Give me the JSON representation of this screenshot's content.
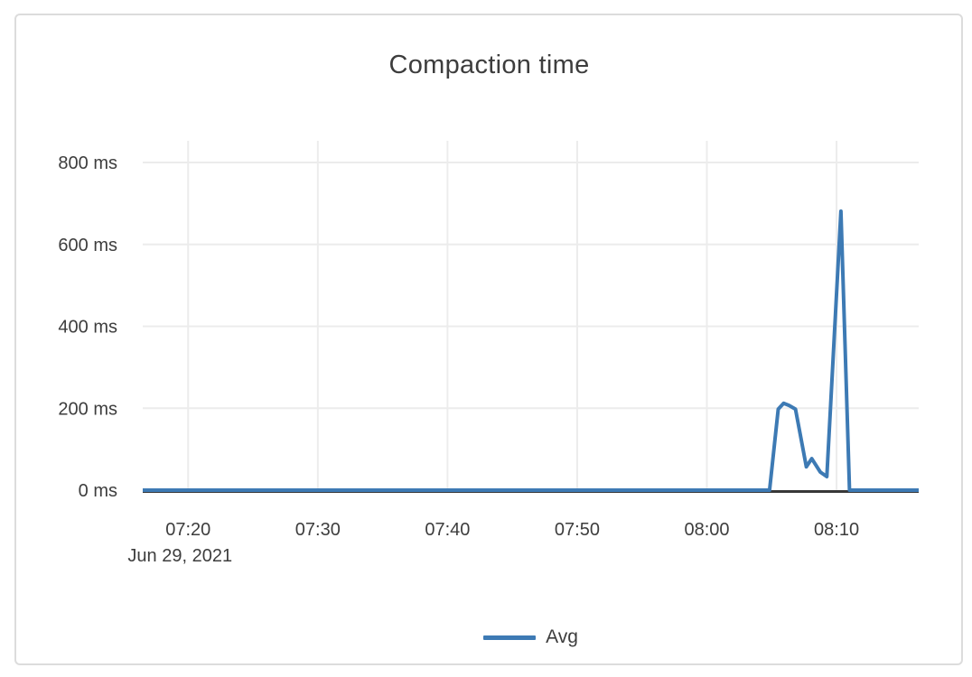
{
  "colors": {
    "series_blue": "#3d7ab4",
    "gridline": "#ececec",
    "zero_axis": "#383838",
    "text": "#3d3d3d",
    "card_border": "#dcdcdc",
    "background": "#ffffff"
  },
  "legend": {
    "items": [
      {
        "label": "Avg",
        "color": "#3d7ab4"
      }
    ]
  },
  "chart_data": {
    "type": "line",
    "title": "Compaction time",
    "x_axis": {
      "date_label": "Jun 29, 2021",
      "domain": [
        "07:16:30",
        "08:16:20"
      ],
      "ticks": [
        "07:20",
        "07:30",
        "07:40",
        "07:50",
        "08:00",
        "08:10"
      ]
    },
    "y_axis": {
      "unit": "ms",
      "min": 0,
      "max": 800,
      "ticks": [
        0,
        200,
        400,
        600,
        800
      ],
      "tick_labels": [
        "0 ms",
        "200 ms",
        "400 ms",
        "600 ms",
        "800 ms"
      ]
    },
    "grid": true,
    "legend_position": "bottom-center",
    "series": [
      {
        "name": "Avg",
        "color": "#3d7ab4",
        "points": [
          [
            "07:16:30",
            0
          ],
          [
            "08:04:50",
            0
          ],
          [
            "08:05:30",
            198
          ],
          [
            "08:05:55",
            212
          ],
          [
            "08:06:20",
            207
          ],
          [
            "08:06:50",
            198
          ],
          [
            "08:07:40",
            57
          ],
          [
            "08:08:05",
            77
          ],
          [
            "08:08:45",
            44
          ],
          [
            "08:09:15",
            33
          ],
          [
            "08:10:20",
            681
          ],
          [
            "08:11:00",
            0
          ],
          [
            "08:16:20",
            0
          ]
        ]
      }
    ]
  }
}
